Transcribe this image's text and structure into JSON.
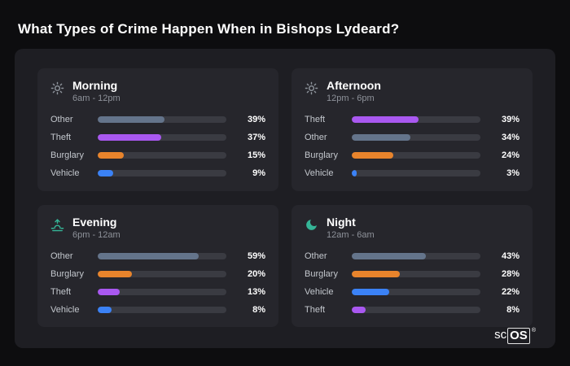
{
  "title": "What Types of Crime Happen When in Bishops Lydeard?",
  "logo": {
    "prefix": "sc",
    "suffix": "OS",
    "mark": "®"
  },
  "category_colors": {
    "Other": "#64748b",
    "Theft": "#a958f0",
    "Burglary": "#e8842c",
    "Vehicle": "#3b82f6"
  },
  "bar_scale_max": 75,
  "chart_data": [
    {
      "type": "bar",
      "title": "Morning",
      "subtitle": "6am - 12pm",
      "icon": "sun-icon",
      "categories": [
        "Other",
        "Theft",
        "Burglary",
        "Vehicle"
      ],
      "values": [
        39,
        37,
        15,
        9
      ],
      "labels": [
        "39%",
        "37%",
        "15%",
        "9%"
      ]
    },
    {
      "type": "bar",
      "title": "Afternoon",
      "subtitle": "12pm - 6pm",
      "icon": "sun-icon",
      "categories": [
        "Theft",
        "Other",
        "Burglary",
        "Vehicle"
      ],
      "values": [
        39,
        34,
        24,
        3
      ],
      "labels": [
        "39%",
        "34%",
        "24%",
        "3%"
      ]
    },
    {
      "type": "bar",
      "title": "Evening",
      "subtitle": "6pm - 12am",
      "icon": "sunset-icon",
      "categories": [
        "Other",
        "Burglary",
        "Theft",
        "Vehicle"
      ],
      "values": [
        59,
        20,
        13,
        8
      ],
      "labels": [
        "59%",
        "20%",
        "13%",
        "8%"
      ]
    },
    {
      "type": "bar",
      "title": "Night",
      "subtitle": "12am - 6am",
      "icon": "moon-icon",
      "categories": [
        "Other",
        "Burglary",
        "Vehicle",
        "Theft"
      ],
      "values": [
        43,
        28,
        22,
        8
      ],
      "labels": [
        "43%",
        "28%",
        "22%",
        "8%"
      ]
    }
  ]
}
